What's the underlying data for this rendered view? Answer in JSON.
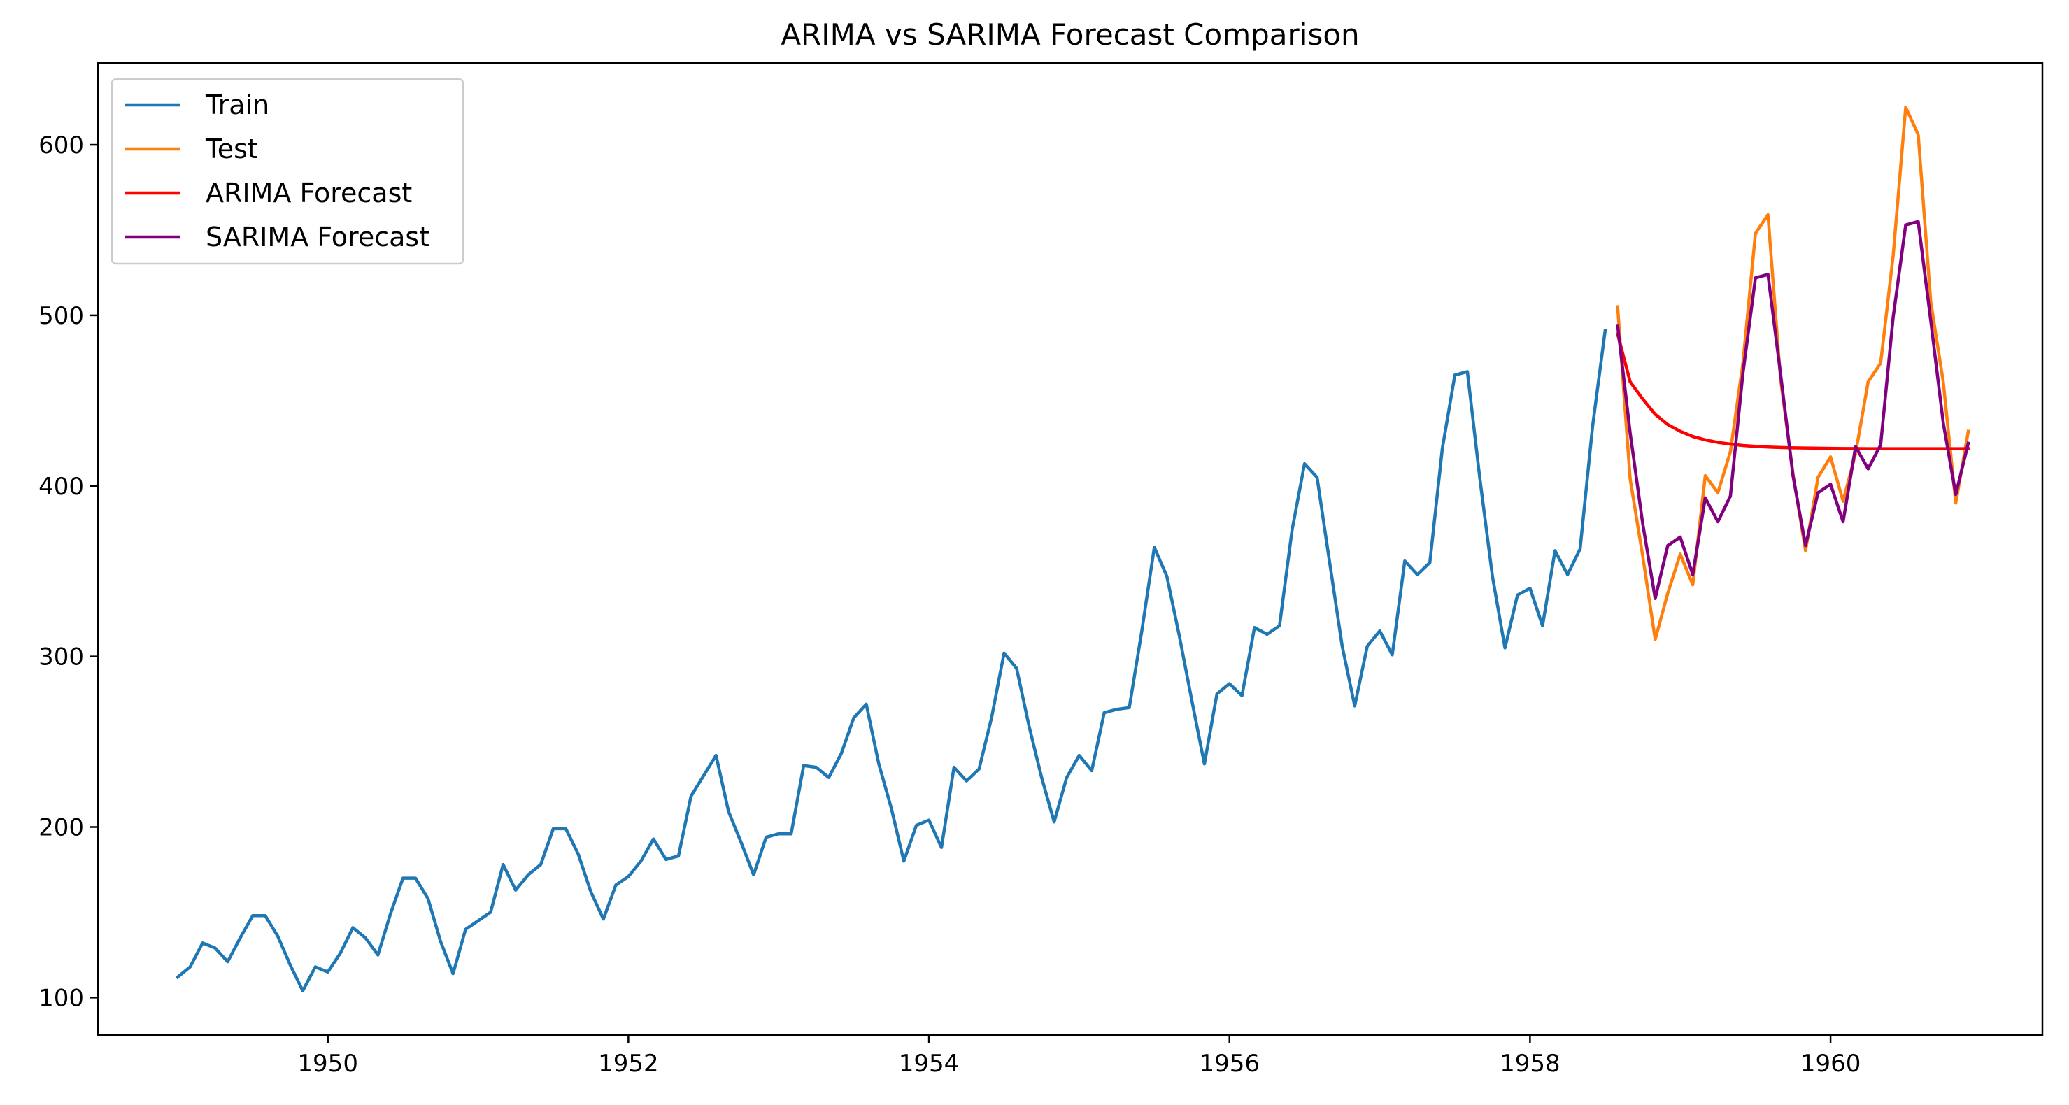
{
  "chart_data": {
    "type": "line",
    "title": "ARIMA vs SARIMA Forecast Comparison",
    "xlabel": "",
    "ylabel": "",
    "xlim": [
      1948.47,
      1961.41
    ],
    "ylim": [
      78,
      648
    ],
    "grid": false,
    "legend_position": "top-left",
    "x_ticks": [
      1950,
      1952,
      1954,
      1956,
      1958,
      1960
    ],
    "x_tick_labels": [
      "1950",
      "1952",
      "1954",
      "1956",
      "1958",
      "1960"
    ],
    "y_ticks": [
      100,
      200,
      300,
      400,
      500,
      600
    ],
    "y_tick_labels": [
      "100",
      "200",
      "300",
      "400",
      "500",
      "600"
    ],
    "x_start": 1949.0,
    "x_step_months": 1,
    "series": [
      {
        "name": "Train",
        "color": "#1f77b4",
        "start_index": 0,
        "values": [
          112,
          118,
          132,
          129,
          121,
          135,
          148,
          148,
          136,
          119,
          104,
          118,
          115,
          126,
          141,
          135,
          125,
          149,
          170,
          170,
          158,
          133,
          114,
          140,
          145,
          150,
          178,
          163,
          172,
          178,
          199,
          199,
          184,
          162,
          146,
          166,
          171,
          180,
          193,
          181,
          183,
          218,
          230,
          242,
          209,
          191,
          172,
          194,
          196,
          196,
          236,
          235,
          229,
          243,
          264,
          272,
          237,
          211,
          180,
          201,
          204,
          188,
          235,
          227,
          234,
          264,
          302,
          293,
          259,
          229,
          203,
          229,
          242,
          233,
          267,
          269,
          270,
          315,
          364,
          347,
          312,
          274,
          237,
          278,
          284,
          277,
          317,
          313,
          318,
          374,
          413,
          405,
          355,
          306,
          271,
          306,
          315,
          301,
          356,
          348,
          355,
          422,
          465,
          467,
          404,
          347,
          305,
          336,
          340,
          318,
          362,
          348,
          363,
          435,
          491
        ]
      },
      {
        "name": "Test",
        "color": "#ff7f0e",
        "start_index": 115,
        "values": [
          505,
          404,
          359,
          310,
          337,
          360,
          342,
          406,
          396,
          420,
          472,
          548,
          559,
          463,
          407,
          362,
          405,
          417,
          391,
          419,
          461,
          472,
          535,
          622,
          606,
          508,
          461,
          390,
          432
        ]
      },
      {
        "name": "ARIMA Forecast",
        "color": "#ff0000",
        "start_index": 115,
        "values": [
          489,
          461,
          451,
          442,
          436,
          432,
          429,
          427,
          425.5,
          424.5,
          423.7,
          423.2,
          422.8,
          422.5,
          422.3,
          422.2,
          422.1,
          422,
          421.9,
          421.9,
          421.8,
          421.8,
          421.8,
          421.8,
          421.8,
          421.8,
          421.8,
          421.8,
          421.8
        ]
      },
      {
        "name": "SARIMA Forecast",
        "color": "#800080",
        "start_index": 115,
        "values": [
          494,
          431,
          378,
          334,
          365,
          370,
          348,
          393,
          379,
          394,
          466,
          522,
          524,
          466,
          406,
          365,
          396,
          401,
          379,
          423,
          410,
          424,
          499,
          553,
          555,
          497,
          437,
          395,
          425
        ]
      }
    ]
  }
}
